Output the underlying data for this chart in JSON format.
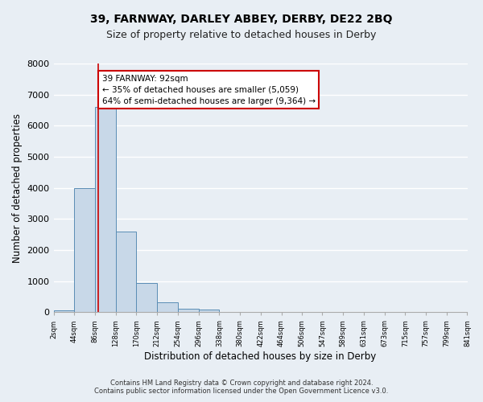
{
  "title": "39, FARNWAY, DARLEY ABBEY, DERBY, DE22 2BQ",
  "subtitle": "Size of property relative to detached houses in Derby",
  "xlabel": "Distribution of detached houses by size in Derby",
  "ylabel": "Number of detached properties",
  "bin_edges": [
    2,
    44,
    86,
    128,
    170,
    212,
    254,
    296,
    338,
    380,
    422,
    464,
    506,
    547,
    589,
    631,
    673,
    715,
    757,
    799,
    841
  ],
  "bar_heights": [
    50,
    4000,
    6600,
    2600,
    950,
    320,
    120,
    100,
    0,
    0,
    0,
    0,
    0,
    0,
    0,
    0,
    0,
    0,
    0,
    0
  ],
  "bar_color": "#c8d8e8",
  "bar_edge_color": "#5a8db5",
  "property_size": 92,
  "vline_color": "#cc0000",
  "annotation_line1": "39 FARNWAY: 92sqm",
  "annotation_line2": "← 35% of detached houses are smaller (5,059)",
  "annotation_line3": "64% of semi-detached houses are larger (9,364) →",
  "annotation_box_color": "#ffffff",
  "annotation_box_edge": "#cc0000",
  "ylim": [
    0,
    8000
  ],
  "yticks": [
    0,
    1000,
    2000,
    3000,
    4000,
    5000,
    6000,
    7000,
    8000
  ],
  "tick_labels": [
    "2sqm",
    "44sqm",
    "86sqm",
    "128sqm",
    "170sqm",
    "212sqm",
    "254sqm",
    "296sqm",
    "338sqm",
    "380sqm",
    "422sqm",
    "464sqm",
    "506sqm",
    "547sqm",
    "589sqm",
    "631sqm",
    "673sqm",
    "715sqm",
    "757sqm",
    "799sqm",
    "841sqm"
  ],
  "footer_line1": "Contains HM Land Registry data © Crown copyright and database right 2024.",
  "footer_line2": "Contains public sector information licensed under the Open Government Licence v3.0.",
  "background_color": "#e8eef4",
  "plot_bg_color": "#e8eef4",
  "grid_color": "#ffffff",
  "title_fontsize": 10,
  "subtitle_fontsize": 9,
  "ylabel_text": "Number of detached properties"
}
